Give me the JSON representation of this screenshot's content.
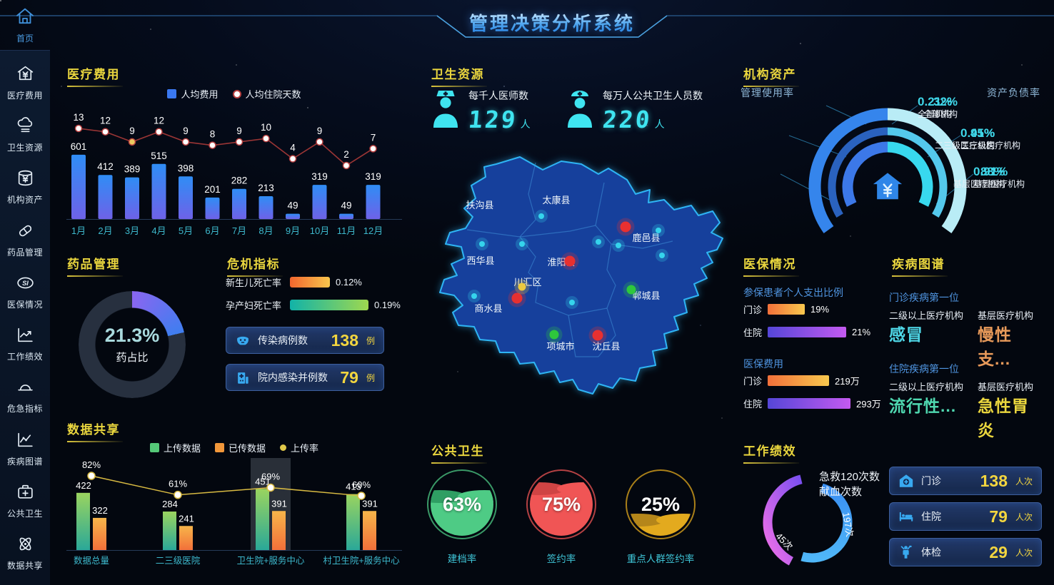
{
  "header": {
    "title": "管理决策分析系统"
  },
  "sidebar": {
    "home": {
      "label": "首页",
      "icon": "home-icon"
    },
    "items": [
      {
        "label": "医疗费用",
        "icon": "fee-icon"
      },
      {
        "label": "卫生资源",
        "icon": "cloud-icon"
      },
      {
        "label": "机构资产",
        "icon": "asset-icon"
      },
      {
        "label": "药品管理",
        "icon": "pill-icon"
      },
      {
        "label": "医保情况",
        "icon": "insurance-icon"
      },
      {
        "label": "工作绩效",
        "icon": "performance-icon"
      },
      {
        "label": "危急指标",
        "icon": "alarm-icon"
      },
      {
        "label": "疾病图谱",
        "icon": "disease-icon"
      },
      {
        "label": "公共卫生",
        "icon": "publichealth-icon"
      },
      {
        "label": "数据共享",
        "icon": "share-icon"
      }
    ]
  },
  "colors": {
    "accent_yellow": "#ead63e",
    "value_yellow": "#f2d53f",
    "cyan": "#3fd6e8",
    "bar_blue_top": "#2f8df5",
    "bar_blue_bottom": "#6e62e8",
    "line_red": "#9a3535",
    "green_bar": "#8fd45f",
    "orange_bar": "#f2973a",
    "upload_line_yellow": "#d8ba42",
    "map_fill": "#17409c",
    "map_stroke": "#2fb4f4",
    "marker_red": "#e83030",
    "marker_green": "#2ec83c",
    "marker_cyan": "#35d4ec",
    "marker_yellow": "#ecc93f"
  },
  "panels": {
    "medical_fee": {
      "title": "医疗费用",
      "chart_data": {
        "type": "bar+line",
        "categories": [
          "1月",
          "2月",
          "3月",
          "4月",
          "5月",
          "6月",
          "7月",
          "8月",
          "9月",
          "10月",
          "11月",
          "12月"
        ],
        "series": [
          {
            "name": "人均费用",
            "type": "bar",
            "values": [
              601,
              412,
              389,
              515,
              398,
              201,
              282,
              213,
              49,
              319,
              49,
              319
            ]
          },
          {
            "name": "人均住院天数",
            "type": "line",
            "values": [
              13,
              12,
              9,
              12,
              9,
              8,
              9,
              10,
              4,
              9,
              2,
              7
            ]
          }
        ]
      }
    },
    "drug": {
      "title": "药品管理",
      "chart_data": {
        "type": "donut",
        "value": 21.3,
        "value_label": "21.3%",
        "center_label": "药占比"
      }
    },
    "crisis": {
      "title": "危机指标",
      "chart_data": {
        "type": "hbar",
        "rows": [
          {
            "label": "新生儿死亡率",
            "value": "0.12%",
            "bar_len": 56,
            "color": "orange"
          },
          {
            "label": "孕产妇死亡率",
            "value": "0.19%",
            "bar_len": 110,
            "color": "teal"
          }
        ]
      },
      "cards": [
        {
          "icon": "mask-icon",
          "label": "传染病例数",
          "value": "138",
          "unit": "例"
        },
        {
          "icon": "hospital-icon",
          "label": "院内感染并例数",
          "value": "79",
          "unit": "例"
        }
      ]
    },
    "data_share": {
      "title": "数据共享",
      "chart_data": {
        "type": "bar+line",
        "categories": [
          "数据总量",
          "二三级医院",
          "卫生院+服务中心",
          "村卫生院+服务中心"
        ],
        "series": [
          {
            "name": "上传数据",
            "type": "bar",
            "values": [
              422,
              284,
              451,
              413
            ]
          },
          {
            "name": "已传数据",
            "type": "bar",
            "values": [
              322,
              241,
              391,
              391
            ]
          },
          {
            "name": "上传率",
            "type": "line",
            "values": [
              82,
              61,
              69,
              60
            ],
            "unit": "%"
          }
        ],
        "highlight_index": 2
      }
    },
    "health_resource": {
      "title": "卫生资源",
      "stats": [
        {
          "icon": "doctor-icon",
          "label": "每千人医师数",
          "value": "129",
          "unit": "人"
        },
        {
          "icon": "nurse-icon",
          "label": "每万人公共卫生人员数",
          "value": "220",
          "unit": "人"
        }
      ]
    },
    "map": {
      "labels": [
        "扶沟县",
        "太康县",
        "鹿邑县",
        "西华县",
        "淮阳县",
        "川汇区",
        "商水县",
        "郸城县",
        "项城市",
        "沈丘县"
      ]
    },
    "org_assets": {
      "title": "机构资产",
      "left": {
        "title": "管理使用率",
        "items": [
          {
            "value": "32%",
            "label": "全部机构"
          },
          {
            "value": "45%",
            "label": "二三级医疗机构"
          },
          {
            "value": "88%",
            "label": "基层医疗机构"
          }
        ]
      },
      "right": {
        "title": "资产负债率",
        "items": [
          {
            "value": "0.21%",
            "label": "全部机构"
          },
          {
            "value": "0.91%",
            "label": "二三级医疗机构"
          },
          {
            "value": "0.91%",
            "label": "基层医疗机构"
          }
        ]
      },
      "center_icon": "house-yen-icon"
    },
    "medicare": {
      "title": "医保情况",
      "groups": [
        {
          "subtitle": "参保患者个人支出比例",
          "rows": [
            {
              "label": "门诊",
              "value": "19%",
              "color": "orange",
              "bar_len": 52
            },
            {
              "label": "住院",
              "value": "21%",
              "color": "purple",
              "bar_len": 110
            }
          ]
        },
        {
          "subtitle": "医保费用",
          "rows": [
            {
              "label": "门诊",
              "value": "219万",
              "color": "orange",
              "bar_len": 86
            },
            {
              "label": "住院",
              "value": "293万",
              "color": "purple",
              "bar_len": 116
            }
          ]
        }
      ]
    },
    "disease": {
      "title": "疾病图谱",
      "groups": [
        {
          "subtitle": "门诊疾病第一位",
          "cols": [
            {
              "header": "二级以上医疗机构",
              "value": "感冒",
              "color": "#4fd8e8"
            },
            {
              "header": "基层医疗机构",
              "value": "慢性支...",
              "color": "#e89a5a"
            }
          ]
        },
        {
          "subtitle": "住院疾病第一位",
          "cols": [
            {
              "header": "二级以上医疗机构",
              "value": "流行性...",
              "color": "#4fd8b0"
            },
            {
              "header": "基层医疗机构",
              "value": "急性胃炎",
              "color": "#ead63e"
            }
          ]
        }
      ]
    },
    "public_health": {
      "title": "公共卫生",
      "chart_data": {
        "type": "liquid-gauge",
        "items": [
          {
            "value": 63,
            "label": "建档率",
            "color": "#4ecb85",
            "dark": "#2f9e63"
          },
          {
            "value": 75,
            "label": "签约率",
            "color": "#f05555",
            "dark": "#cf4444"
          },
          {
            "value": 25,
            "label": "重点人群签约率",
            "color": "#e3aa1e",
            "dark": "#b5861a"
          }
        ]
      }
    },
    "work_perf": {
      "title": "工作绩效",
      "chart_data": {
        "type": "donut-arcs",
        "arcs": [
          {
            "label": "急救120次数",
            "text": "45次",
            "color": "purple"
          },
          {
            "label": "献血次数",
            "text": "197次",
            "color": "blue"
          }
        ]
      },
      "cards": [
        {
          "icon": "clinic-icon",
          "label": "门诊",
          "value": "138",
          "unit": "人次"
        },
        {
          "icon": "bed-icon",
          "label": "住院",
          "value": "79",
          "unit": "人次"
        },
        {
          "icon": "checkup-icon",
          "label": "体检",
          "value": "29",
          "unit": "人次"
        }
      ]
    }
  }
}
